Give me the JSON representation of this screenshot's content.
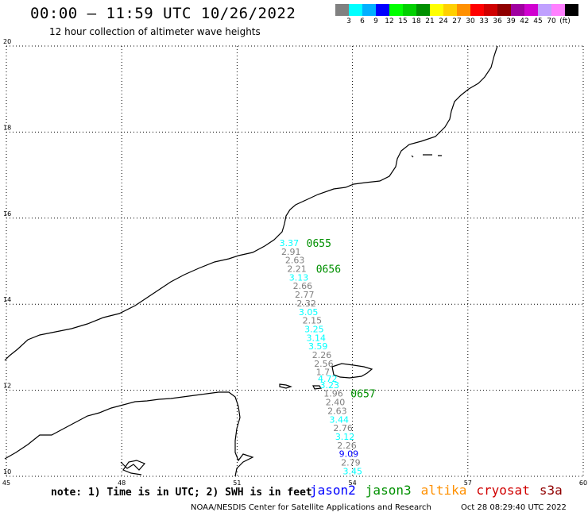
{
  "header": {
    "title": "00:00 – 11:59 UTC 10/26/2022",
    "subtitle": "12 hour collection of altimeter wave heights"
  },
  "colorbar": {
    "colors": [
      "#808080",
      "#00ffff",
      "#00b0ff",
      "#0000ff",
      "#00ff00",
      "#00d000",
      "#009000",
      "#ffff00",
      "#ffd000",
      "#ff9000",
      "#ff0000",
      "#d00000",
      "#900000",
      "#a000a0",
      "#d000d0",
      "#c0a0ff",
      "#ff80ff",
      "#000000"
    ],
    "labels": [
      "3",
      "6",
      "9",
      "12",
      "15",
      "18",
      "21",
      "24",
      "27",
      "30",
      "33",
      "36",
      "39",
      "42",
      "45",
      "70",
      "(ft)"
    ]
  },
  "axes": {
    "lon_labels": [
      "45",
      "48",
      "51",
      "54",
      "57",
      "60"
    ],
    "lat_labels": [
      "20",
      "18",
      "16",
      "14",
      "12",
      "10"
    ]
  },
  "time_labels": [
    "0655",
    "0656",
    "0657"
  ],
  "swh_points": [
    {
      "lat": 15.35,
      "lon": 52.1,
      "value": "3.37",
      "sat": "jason3",
      "color": "#00ffff"
    },
    {
      "lat": 15.15,
      "lon": 52.15,
      "value": "2.91",
      "sat": "jason3",
      "color": "#808080"
    },
    {
      "lat": 14.95,
      "lon": 52.25,
      "value": "2.63",
      "sat": "jason3",
      "color": "#808080"
    },
    {
      "lat": 14.75,
      "lon": 52.3,
      "value": "2.21",
      "sat": "jason3",
      "color": "#808080"
    },
    {
      "lat": 14.55,
      "lon": 52.35,
      "value": "3.13",
      "sat": "jason3",
      "color": "#00ffff"
    },
    {
      "lat": 14.35,
      "lon": 52.45,
      "value": "2.66",
      "sat": "jason3",
      "color": "#808080"
    },
    {
      "lat": 14.15,
      "lon": 52.5,
      "value": "2.77",
      "sat": "jason3",
      "color": "#808080"
    },
    {
      "lat": 13.95,
      "lon": 52.55,
      "value": "2.32",
      "sat": "jason3",
      "color": "#808080"
    },
    {
      "lat": 13.75,
      "lon": 52.6,
      "value": "3.05",
      "sat": "jason3",
      "color": "#00ffff"
    },
    {
      "lat": 13.55,
      "lon": 52.7,
      "value": "2.15",
      "sat": "jason3",
      "color": "#808080"
    },
    {
      "lat": 13.35,
      "lon": 52.75,
      "value": "3.25",
      "sat": "jason3",
      "color": "#00ffff"
    },
    {
      "lat": 13.15,
      "lon": 52.8,
      "value": "3.14",
      "sat": "jason3",
      "color": "#00ffff"
    },
    {
      "lat": 12.95,
      "lon": 52.85,
      "value": "3.59",
      "sat": "jason3",
      "color": "#00ffff"
    },
    {
      "lat": 12.75,
      "lon": 52.95,
      "value": "2.26",
      "sat": "jason3",
      "color": "#808080"
    },
    {
      "lat": 12.55,
      "lon": 53.0,
      "value": "2.56",
      "sat": "jason3",
      "color": "#808080"
    },
    {
      "lat": 12.35,
      "lon": 53.05,
      "value": "1.7",
      "sat": "jason3",
      "color": "#808080"
    },
    {
      "lat": 12.2,
      "lon": 53.1,
      "value": "4.72",
      "sat": "jason3",
      "color": "#00ffff"
    },
    {
      "lat": 12.05,
      "lon": 53.15,
      "value": "3.23",
      "sat": "jason3",
      "color": "#00ffff"
    },
    {
      "lat": 11.85,
      "lon": 53.25,
      "value": "1.96",
      "sat": "jason3",
      "color": "#808080"
    },
    {
      "lat": 11.65,
      "lon": 53.3,
      "value": "2.40",
      "sat": "jason3",
      "color": "#808080"
    },
    {
      "lat": 11.45,
      "lon": 53.35,
      "value": "2.63",
      "sat": "jason3",
      "color": "#808080"
    },
    {
      "lat": 11.25,
      "lon": 53.4,
      "value": "3.44",
      "sat": "jason3",
      "color": "#00ffff"
    },
    {
      "lat": 11.05,
      "lon": 53.5,
      "value": "2.76",
      "sat": "jason3",
      "color": "#808080"
    },
    {
      "lat": 10.85,
      "lon": 53.55,
      "value": "3.12",
      "sat": "jason3",
      "color": "#00ffff"
    },
    {
      "lat": 10.65,
      "lon": 53.6,
      "value": "2.26",
      "sat": "jason3",
      "color": "#808080"
    },
    {
      "lat": 10.45,
      "lon": 53.65,
      "value": "9.09",
      "sat": "jason3",
      "color": "#0000ff"
    },
    {
      "lat": 10.25,
      "lon": 53.7,
      "value": "2.79",
      "sat": "jason3",
      "color": "#808080"
    },
    {
      "lat": 10.05,
      "lon": 53.75,
      "value": "3.45",
      "sat": "jason3",
      "color": "#00ffff"
    }
  ],
  "note": "note: 1) Time is in UTC; 2) SWH is in feet",
  "legend": [
    {
      "name": "jason2",
      "color": "#0000ff"
    },
    {
      "name": "jason3",
      "color": "#009000"
    },
    {
      "name": "altika",
      "color": "#ff9000"
    },
    {
      "name": "cryosat",
      "color": "#d00000"
    },
    {
      "name": "s3a",
      "color": "#900000"
    }
  ],
  "credit": "NOAA/NESDIS Center for Satellite Applications and Research",
  "generated": "Oct 28 08:29:40 UTC 2022"
}
